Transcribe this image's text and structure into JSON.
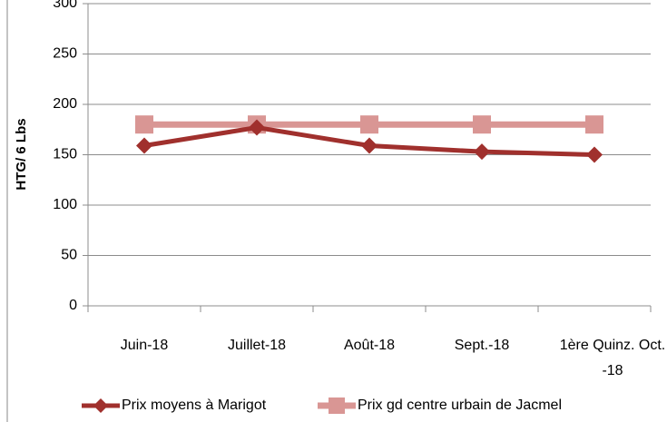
{
  "chart_data": {
    "type": "line",
    "y_axis_label": "HTG/ 6 Lbs",
    "categories": [
      "Juin-18",
      "Juillet-18",
      "Août-18",
      "Sept.-18",
      "1ère Quinz. Oct. -18"
    ],
    "series": [
      {
        "name": "Prix moyens à Marigot",
        "color": "#a0302d",
        "marker": "diamond",
        "values": [
          159,
          177,
          159,
          153,
          150
        ]
      },
      {
        "name": "Prix gd centre urbain de Jacmel",
        "color": "#d99694",
        "marker": "square",
        "values": [
          180,
          180,
          180,
          180,
          180
        ]
      }
    ],
    "ylim": [
      0,
      300
    ],
    "yticks": [
      0,
      50,
      100,
      150,
      200,
      250,
      300
    ],
    "grid": true,
    "legend": "bottom"
  }
}
